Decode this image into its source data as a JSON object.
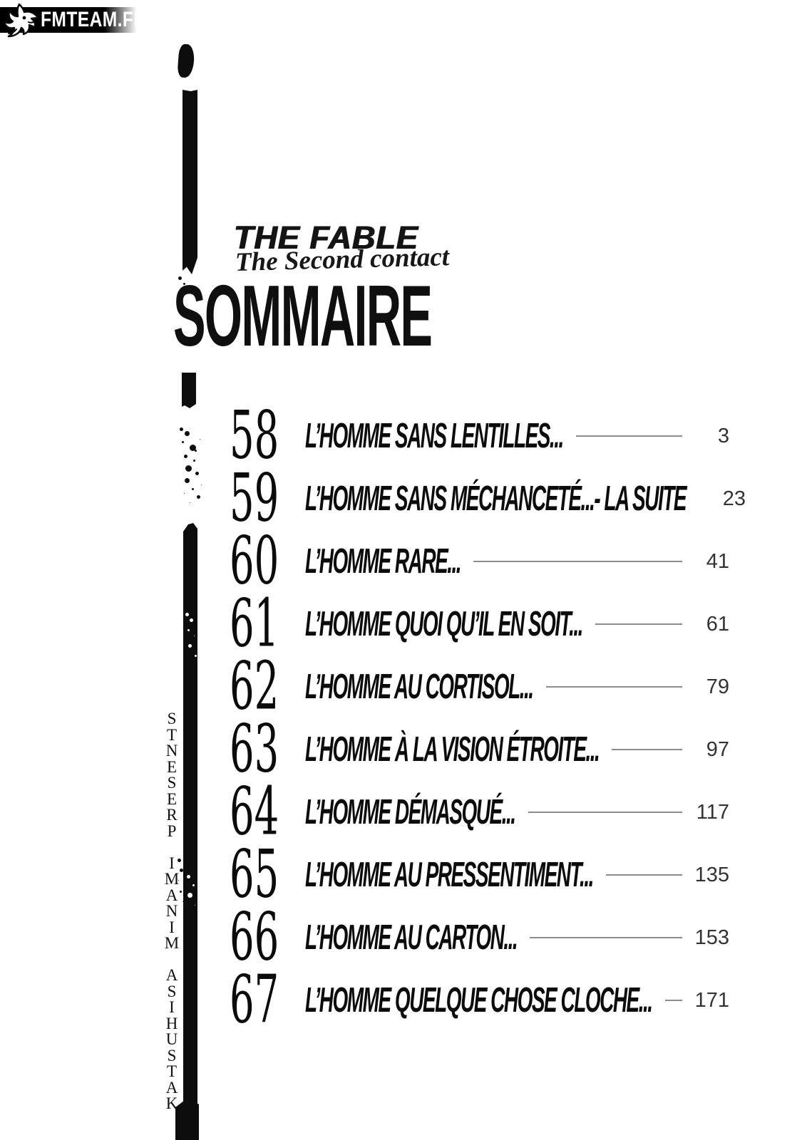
{
  "watermark": {
    "site": "FMTEAM.FR",
    "icon": "dragon-icon"
  },
  "logo": {
    "title": "THE FABLE",
    "subtitle": "The Second contact"
  },
  "page_title": "SOMMAIRE",
  "credit_vertical": "KATSUHISA MINAMI PRESENTS",
  "toc": {
    "entries": [
      {
        "chapter": "58",
        "title": "L’HOMME SANS LENTILLES...",
        "page": "3"
      },
      {
        "chapter": "59",
        "title": "L’HOMME SANS MÉCHANCETÉ...- LA SUITE",
        "page": "23"
      },
      {
        "chapter": "60",
        "title": "L’HOMME RARE...",
        "page": "41"
      },
      {
        "chapter": "61",
        "title": "L’HOMME QUOI QU’IL EN SOIT...",
        "page": "61"
      },
      {
        "chapter": "62",
        "title": "L’HOMME AU CORTISOL...",
        "page": "79"
      },
      {
        "chapter": "63",
        "title": "L’HOMME À LA VISION ÉTROITE...",
        "page": "97"
      },
      {
        "chapter": "64",
        "title": "L’HOMME DÉMASQUÉ...",
        "page": "117"
      },
      {
        "chapter": "65",
        "title": "L’HOMME AU PRESSENTIMENT...",
        "page": "135"
      },
      {
        "chapter": "66",
        "title": "L’HOMME AU CARTON...",
        "page": "153"
      },
      {
        "chapter": "67",
        "title": "L’HOMME QUELQUE CHOSE CLOCHE...",
        "page": "171"
      }
    ]
  },
  "colors": {
    "ink": "#0d0d0d",
    "page_number": "#333333",
    "leader_line": "#8c8c8c",
    "watermark_bg": "#000000",
    "watermark_text": "#ffffff"
  }
}
